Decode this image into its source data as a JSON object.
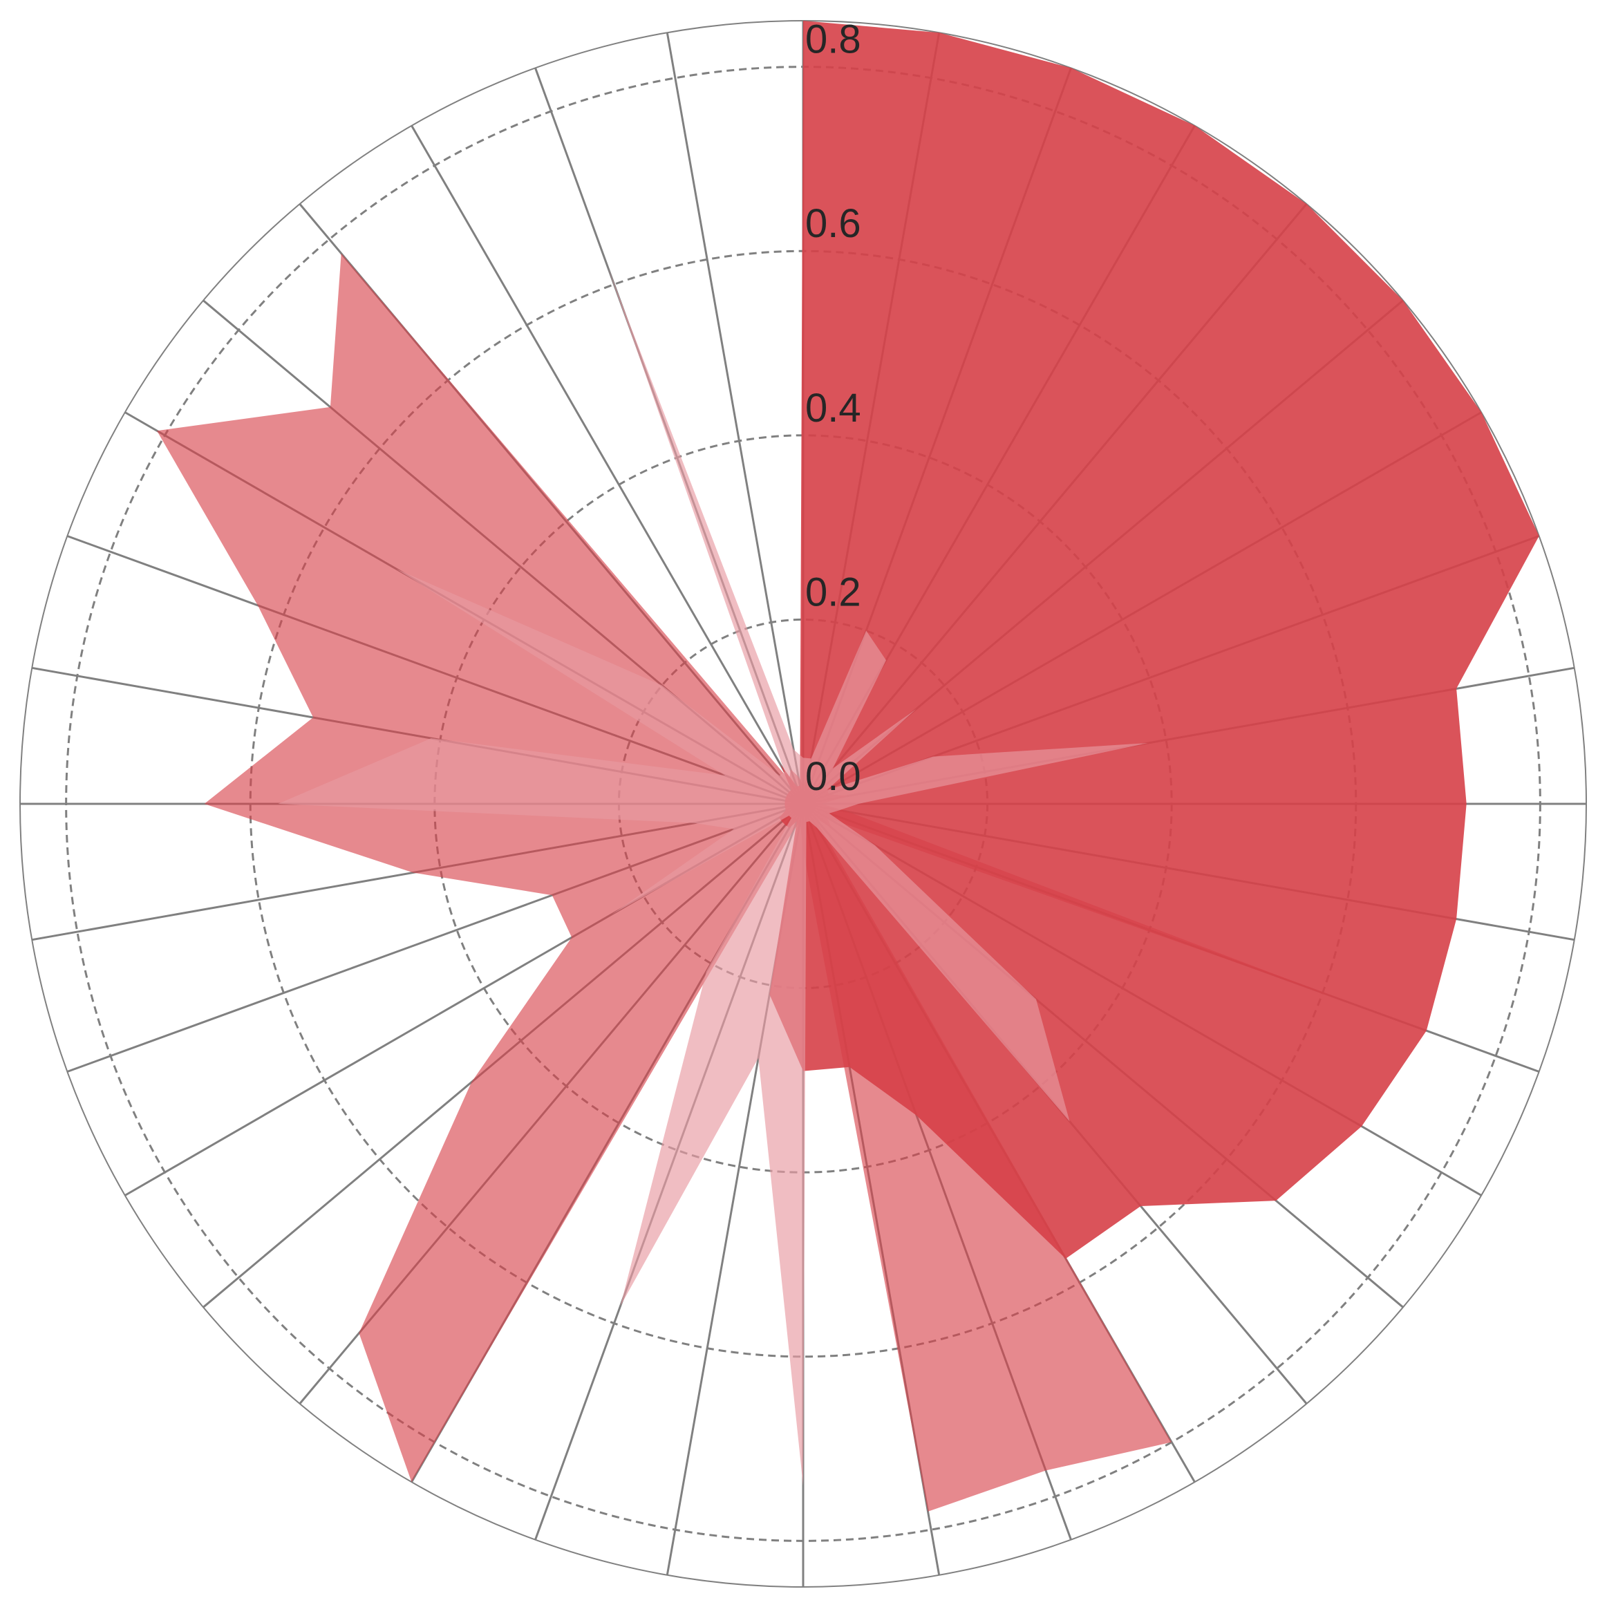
{
  "chart_data": {
    "type": "radar",
    "axis_count": 36,
    "rlim": [
      0,
      0.85
    ],
    "r_ticks": [
      0.0,
      0.2,
      0.4,
      0.6,
      0.8
    ],
    "r_tick_labels": [
      "0.0",
      "0.2",
      "0.4",
      "0.6",
      "0.8"
    ],
    "grid": true,
    "legend": "none",
    "series": [
      {
        "values": [
          0.85,
          0.85,
          0.85,
          0.85,
          0.85,
          0.85,
          0.85,
          0.85,
          0.72,
          0.72,
          0.72,
          0.72,
          0.7,
          0.67,
          0.57,
          0.57,
          0.36,
          0.29,
          0.29,
          0.21,
          0.02,
          0.03,
          0.03,
          0.03,
          0.03,
          0.02,
          0.02,
          0.02,
          0.02,
          0.02,
          0.02,
          0.02,
          0.02,
          0.05,
          0.02,
          0.02
        ],
        "color": "#d64048",
        "opacity": 0.9
      },
      {
        "values": [
          0.02,
          0.03,
          0.02,
          0.02,
          0.03,
          0.03,
          0.03,
          0.03,
          0.05,
          0.02,
          0.05,
          0.63,
          0.03,
          0.04,
          0.02,
          0.8,
          0.77,
          0.78,
          0.05,
          0.02,
          0.03,
          0.85,
          0.75,
          0.47,
          0.29,
          0.29,
          0.43,
          0.65,
          0.54,
          0.63,
          0.81,
          0.67,
          0.78,
          0.03,
          0.04,
          0.03
        ],
        "color": "#d64048",
        "opacity": 0.62
      },
      {
        "values": [
          0.05,
          0.05,
          0.2,
          0.18,
          0.05,
          0.16,
          0.03,
          0.15,
          0.38,
          0.06,
          0.04,
          0.03,
          0.09,
          0.33,
          0.45,
          0.03,
          0.02,
          0.02,
          0.74,
          0.28,
          0.58,
          0.21,
          0.02,
          0.02,
          0.24,
          0.08,
          0.12,
          0.57,
          0.41,
          0.09,
          0.51,
          0.2,
          0.04,
          0.04,
          0.62,
          0.06
        ],
        "color": "#e89aa1",
        "opacity": 0.65
      }
    ]
  }
}
